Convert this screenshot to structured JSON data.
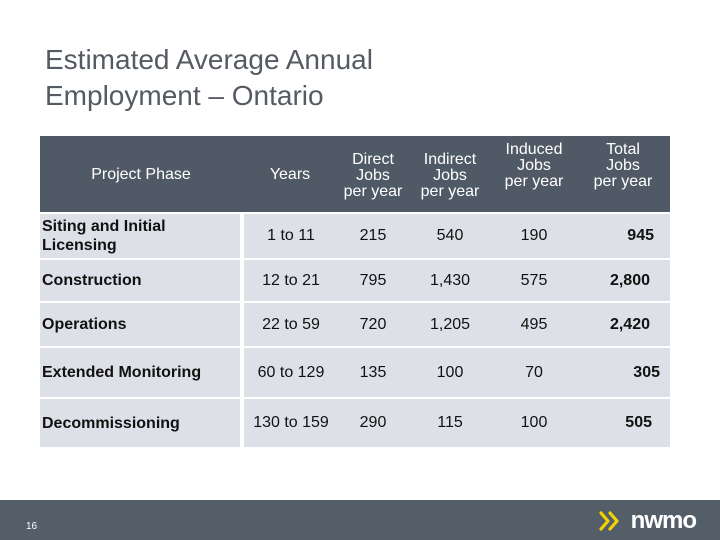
{
  "title": {
    "line1": "Estimated Average Annual",
    "line2": "Employment – Ontario"
  },
  "table": {
    "headers": {
      "phase": "Project Phase",
      "years": "Years",
      "direct": [
        "Direct",
        "Jobs",
        "per year"
      ],
      "indirect": [
        "Indirect",
        "Jobs",
        "per year"
      ],
      "induced": [
        "Induced",
        "Jobs",
        "per year"
      ],
      "total": [
        "Total",
        "Jobs",
        "per year"
      ]
    },
    "rows": [
      {
        "phase": "Siting and Initial Licensing",
        "years": "1 to 11",
        "direct": "215",
        "indirect": "540",
        "induced": "190",
        "total": "945"
      },
      {
        "phase": "Construction",
        "years": "12 to 21",
        "direct": "795",
        "indirect": "1,430",
        "induced": "575",
        "total": "2,800"
      },
      {
        "phase": "Operations",
        "years": "22 to 59",
        "direct": "720",
        "indirect": "1,205",
        "induced": "495",
        "total": "2,420"
      },
      {
        "phase": "Extended Monitoring",
        "years": "60 to 129",
        "direct": "135",
        "indirect": "100",
        "induced": "70",
        "total": "305"
      },
      {
        "phase": "Decommissioning",
        "years": "130 to 159",
        "direct": "290",
        "indirect": "115",
        "induced": "100",
        "total": "505"
      }
    ]
  },
  "footer": {
    "page_number": "16",
    "logo_text": "nwmo",
    "logo_icon": "double-chevron-icon",
    "accent_color": "#f2d400",
    "bar_color": "#545e69"
  }
}
